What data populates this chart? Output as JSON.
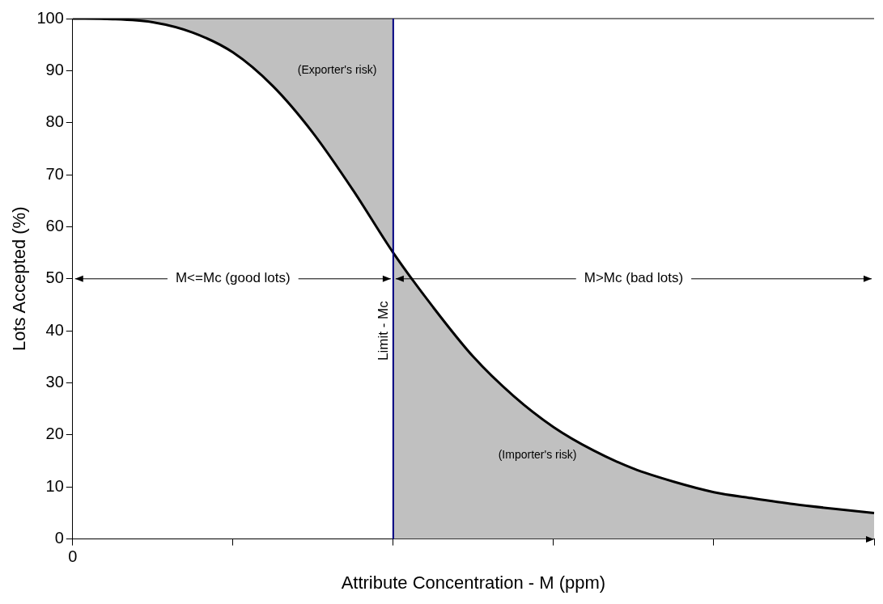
{
  "chart_data": {
    "type": "line",
    "xlabel": "Attribute Concentration - M (ppm)",
    "ylabel": "Lots Accepted (%)",
    "categories": [
      "0",
      null,
      null,
      null,
      null,
      null,
      null,
      null,
      null,
      null,
      null,
      null,
      null,
      null,
      null,
      null,
      null,
      null,
      null,
      null,
      null
    ],
    "ylim": [
      0,
      100
    ],
    "yticks": [
      0,
      10,
      20,
      30,
      40,
      50,
      60,
      70,
      80,
      90,
      100
    ],
    "legend": false,
    "marker": "none",
    "line_style": "solid",
    "series": [
      {
        "type": "area",
        "color": "#c0c0c0",
        "values": [
          100,
          100,
          100,
          100,
          100,
          100,
          100,
          100,
          100,
          null,
          null,
          null,
          null,
          null,
          null,
          null,
          null,
          null,
          null,
          null,
          null
        ]
      },
      {
        "type": "area",
        "color": "#c0c0c0",
        "values": [
          null,
          null,
          null,
          null,
          null,
          null,
          null,
          null,
          55,
          44.5,
          35,
          27.5,
          21.5,
          17,
          13.5,
          11,
          9,
          7.8,
          6.7,
          5.8,
          5
        ]
      },
      {
        "color": "#000000",
        "values": [
          100,
          99.9,
          99.3,
          97.3,
          93.5,
          87,
          78,
          67,
          55,
          44.5,
          35,
          27.5,
          21.5,
          17,
          13.5,
          11,
          9,
          7.8,
          6.7,
          5.8,
          5
        ]
      }
    ],
    "ref_lines": [
      {
        "axis": "x",
        "label": "Limit - Mc",
        "color": "#000080"
      }
    ],
    "annotations": [
      "M<=Mc (good lots)",
      "M>Mc (bad lots)",
      "(Exporter's risk)",
      "(Importer's risk)"
    ]
  }
}
